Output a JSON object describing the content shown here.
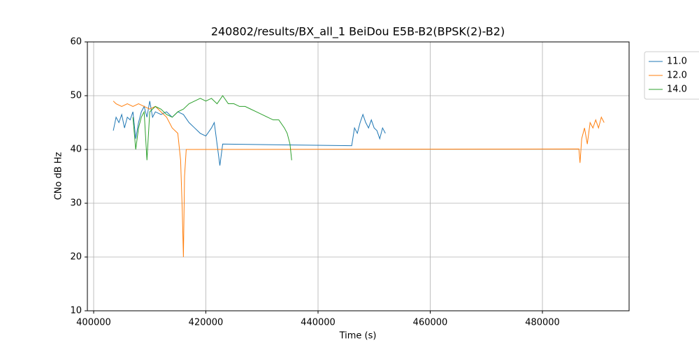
{
  "chart_data": {
    "type": "line",
    "title": "240802/results/BX_all_1 BeiDou E5B-B2(BPSK(2)-B2)",
    "xlabel": "Time (s)",
    "ylabel": "CNo dB Hz",
    "xlim": [
      398880,
      495450
    ],
    "ylim": [
      10,
      60
    ],
    "xticks": [
      400000,
      420000,
      440000,
      460000,
      480000
    ],
    "yticks": [
      10,
      20,
      30,
      40,
      50,
      60
    ],
    "grid": true,
    "legend": "outside-upper-right",
    "series": [
      {
        "name": "11.0",
        "color": "#1f77b4",
        "x": [
          403500,
          404000,
          404500,
          405000,
          405500,
          406000,
          406500,
          407000,
          407500,
          408000,
          408500,
          409000,
          409500,
          410000,
          410500,
          411000,
          412000,
          413000,
          414000,
          415000,
          416000,
          417000,
          418000,
          419000,
          420000,
          421000,
          421500,
          422000,
          422500,
          423000,
          446000,
          446500,
          447000,
          447500,
          448000,
          448500,
          449000,
          449500,
          450000,
          450500,
          451000,
          451500,
          452000
        ],
        "values": [
          43.5,
          46,
          45,
          46.5,
          44,
          46,
          45.5,
          47,
          42,
          45,
          47,
          48,
          46,
          49,
          46,
          47,
          46.5,
          47,
          46,
          47,
          46.5,
          45,
          44,
          43,
          42.5,
          44,
          45,
          41,
          37,
          41,
          40.7,
          44,
          43,
          45,
          46.5,
          45,
          44,
          45.5,
          44,
          43.5,
          42,
          44,
          43
        ]
      },
      {
        "name": "12.0",
        "color": "#ff7f0e",
        "x": [
          403500,
          404000,
          405000,
          406000,
          407000,
          408000,
          409000,
          410000,
          411000,
          412000,
          413000,
          414000,
          415000,
          415500,
          415800,
          416000,
          416200,
          416500,
          486500,
          486700,
          487000,
          487500,
          488000,
          488500,
          489000,
          489500,
          490000,
          490500,
          491000
        ],
        "values": [
          49,
          48.5,
          48,
          48.5,
          48,
          48.5,
          48,
          47.5,
          48,
          47,
          46,
          44,
          43,
          38,
          28.5,
          20,
          35,
          40,
          40.1,
          37.5,
          42,
          44,
          41,
          45,
          44,
          45.5,
          44,
          46,
          45
        ]
      },
      {
        "name": "14.0",
        "color": "#2ca02c",
        "x": [
          407000,
          407500,
          408000,
          408500,
          409000,
          409500,
          410000,
          411000,
          412000,
          413000,
          414000,
          415000,
          416000,
          417000,
          418000,
          419000,
          420000,
          421000,
          422000,
          423000,
          424000,
          425000,
          426000,
          427000,
          428000,
          429000,
          430000,
          431000,
          432000,
          433000,
          434000,
          434500,
          435000,
          435300
        ],
        "values": [
          46,
          40,
          44,
          46,
          47,
          38,
          47,
          48,
          47.5,
          46.5,
          46,
          47,
          47.5,
          48.5,
          49,
          49.5,
          49,
          49.5,
          48.5,
          50,
          48.5,
          48.5,
          48,
          48,
          47.5,
          47,
          46.5,
          46,
          45.5,
          45.5,
          44,
          43,
          41,
          38
        ]
      }
    ]
  }
}
